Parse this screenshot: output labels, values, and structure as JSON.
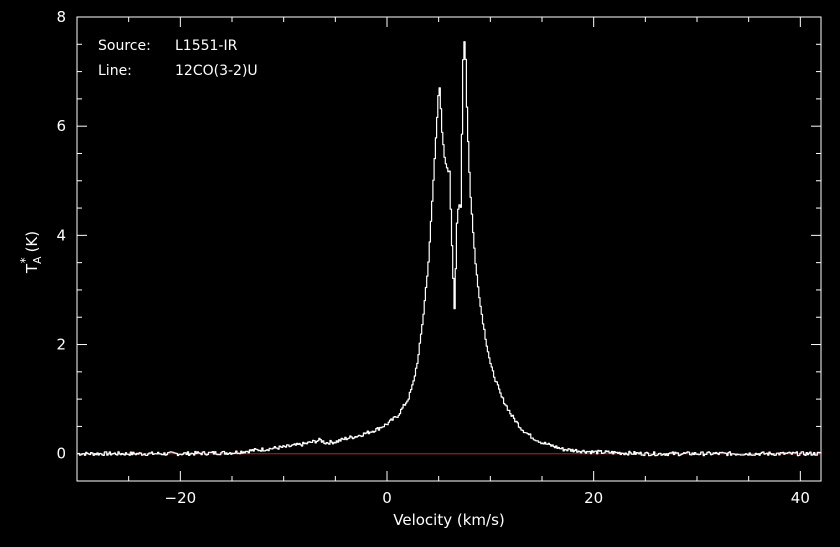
{
  "chart_data": {
    "type": "line",
    "title": "",
    "info": {
      "source_label": "Source:",
      "source_value": "L1551-IR",
      "line_label": "Line:",
      "line_value": "12CO(3-2)U"
    },
    "xlabel": "Velocity (km/s)",
    "ylabel_main": "T",
    "ylabel_sup": "*",
    "ylabel_sub": "A",
    "ylabel_unit": "(K)",
    "xlim": [
      -30,
      42
    ],
    "ylim": [
      -0.5,
      8
    ],
    "x_ticks": [
      -20,
      0,
      20,
      40
    ],
    "x_tick_labels": [
      "−20",
      "0",
      "20",
      "40"
    ],
    "y_ticks": [
      0,
      2,
      4,
      6,
      8
    ],
    "y_tick_labels": [
      "0",
      "2",
      "4",
      "6",
      "8"
    ],
    "grid": false,
    "colors": {
      "background": "#000000",
      "axes": "#ffffff",
      "spectrum": "#ffffff",
      "baseline": "#c81e1e"
    },
    "baseline": 0,
    "series": [
      {
        "role": "spectrum",
        "x": [
          -30,
          -25,
          -20,
          -15,
          -12,
          -10,
          -8,
          -6.5,
          -6,
          -5,
          -4,
          -3,
          -2,
          -1,
          0,
          1,
          2,
          2.5,
          3,
          3.5,
          4,
          4.5,
          5,
          5.3,
          5.6,
          6,
          6.3,
          6.5,
          6.7,
          6.9,
          7.1,
          7.3,
          7.5,
          7.7,
          8,
          8.5,
          9,
          9.5,
          10,
          11,
          12,
          13,
          14,
          15,
          17,
          20,
          25,
          30,
          35,
          42
        ],
        "y": [
          0,
          0,
          0,
          0.02,
          0.08,
          0.12,
          0.18,
          0.25,
          0.2,
          0.22,
          0.28,
          0.32,
          0.38,
          0.45,
          0.55,
          0.7,
          1.0,
          1.3,
          1.8,
          2.6,
          3.6,
          5.2,
          6.85,
          5.8,
          5.3,
          5.15,
          3.5,
          2.6,
          4.2,
          4.55,
          4.5,
          7.2,
          7.7,
          6.2,
          4.8,
          3.5,
          2.7,
          2.1,
          1.6,
          1.05,
          0.7,
          0.45,
          0.3,
          0.2,
          0.08,
          0.03,
          0,
          0,
          0,
          0
        ]
      }
    ]
  }
}
